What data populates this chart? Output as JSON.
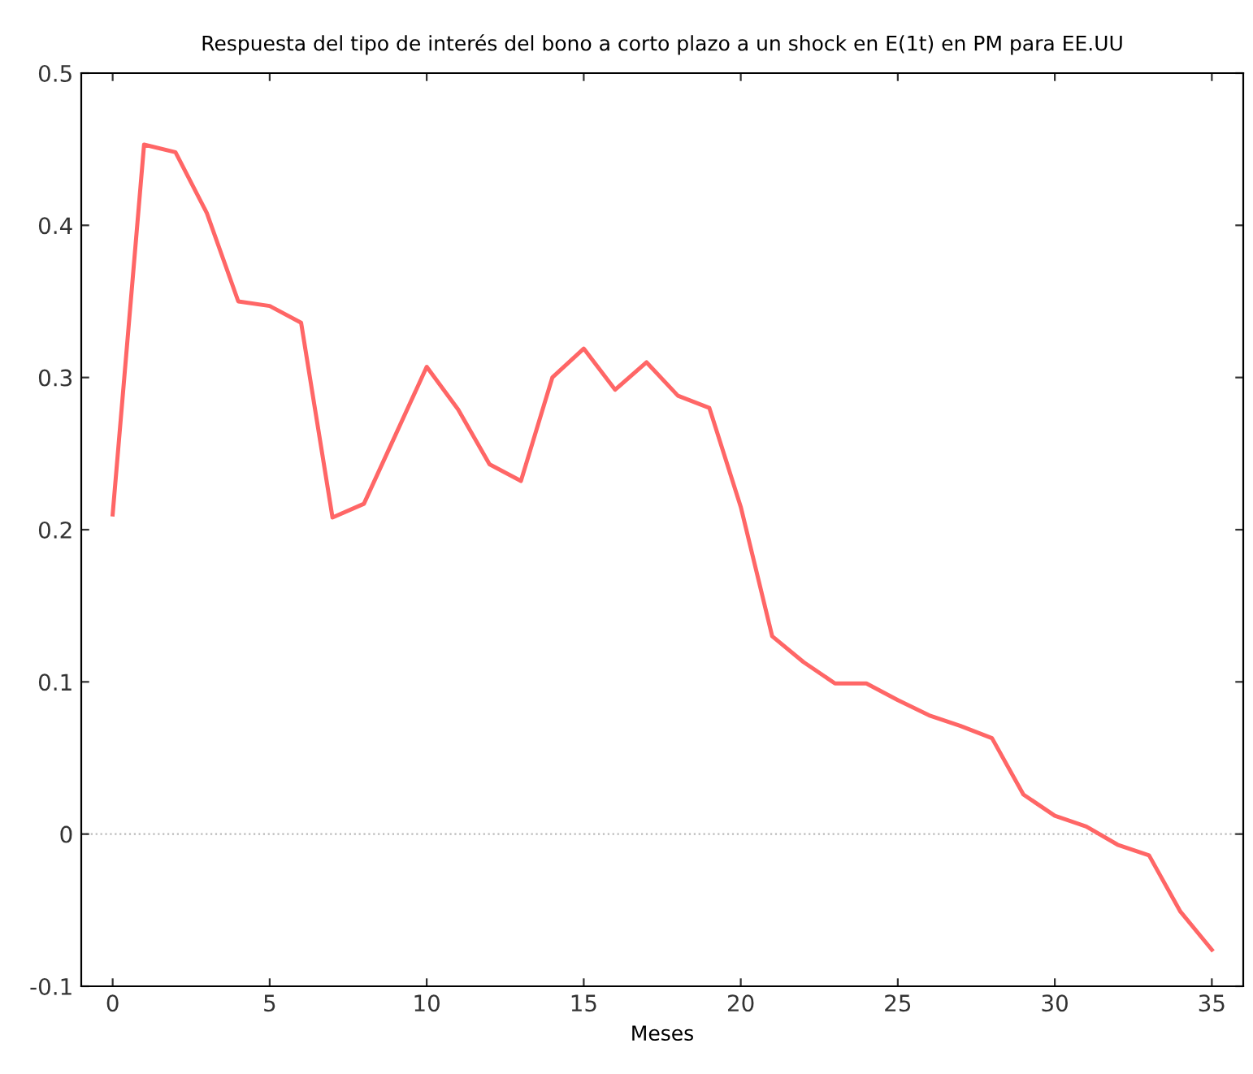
{
  "chart_data": {
    "type": "line",
    "title": "Respuesta del tipo de interés del bono a corto plazo a un shock en E(1t) en PM para EE.UU",
    "xlabel": "Meses",
    "x": [
      0,
      1,
      2,
      3,
      4,
      5,
      6,
      7,
      8,
      9,
      10,
      11,
      12,
      13,
      14,
      15,
      16,
      17,
      18,
      19,
      20,
      21,
      22,
      23,
      24,
      25,
      26,
      27,
      28,
      29,
      30,
      31,
      32,
      33,
      34,
      35
    ],
    "series": [
      {
        "color": "#ff6666",
        "values": [
          0.21,
          0.453,
          0.448,
          0.408,
          0.35,
          0.347,
          0.336,
          0.208,
          0.217,
          0.262,
          0.307,
          0.279,
          0.243,
          0.232,
          0.3,
          0.319,
          0.292,
          0.31,
          0.288,
          0.28,
          0.215,
          0.13,
          0.113,
          0.099,
          0.099,
          0.088,
          0.078,
          0.071,
          0.063,
          0.026,
          0.012,
          0.005,
          -0.007,
          -0.014,
          -0.051,
          -0.076
        ]
      }
    ],
    "xlim": [
      -1,
      36
    ],
    "xticks": [
      0,
      5,
      10,
      15,
      20,
      25,
      30,
      35
    ],
    "ylim": [
      -0.1,
      0.5
    ],
    "yticks": [
      -0.1,
      0,
      0.1,
      0.2,
      0.3,
      0.4,
      0.5
    ],
    "ref_lines": [
      {
        "axis": "y",
        "value": 0,
        "color": "#bbbbbb",
        "line_style": "dotted"
      }
    ],
    "grid": false,
    "legend": false,
    "marker": "none",
    "line_style": "solid"
  }
}
